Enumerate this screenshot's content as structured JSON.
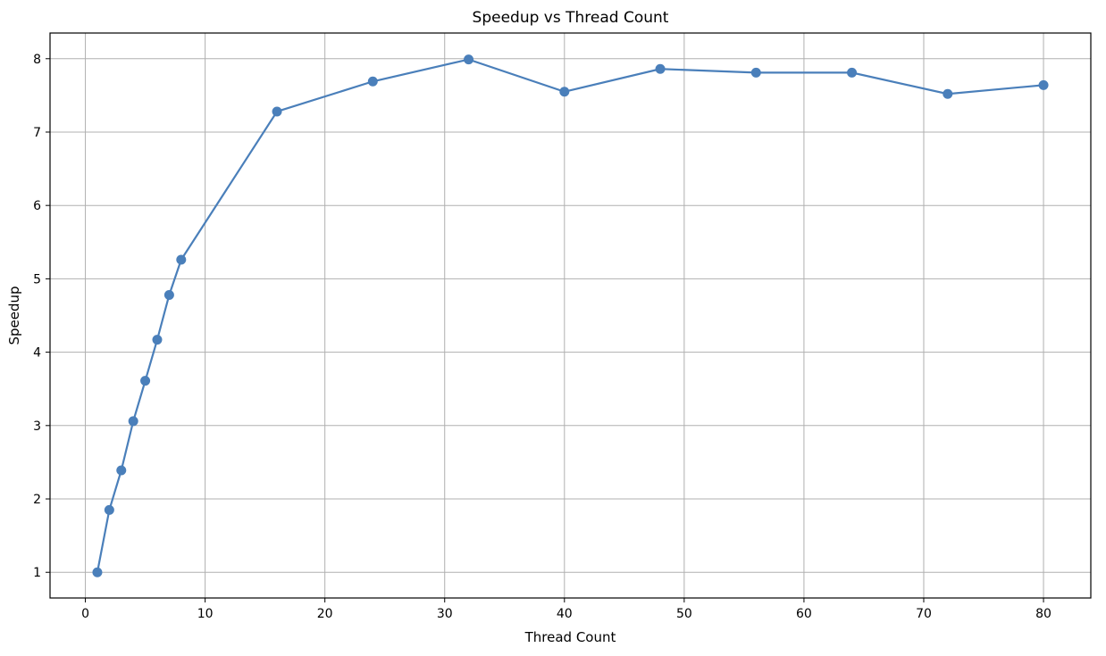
{
  "chart_data": {
    "type": "line",
    "title": "Speedup vs Thread Count",
    "xlabel": "Thread Count",
    "ylabel": "Speedup",
    "xlim": [
      -2.95,
      83.95
    ],
    "ylim": [
      0.65,
      8.35
    ],
    "xticks": [
      0,
      10,
      20,
      30,
      40,
      50,
      60,
      70,
      80
    ],
    "yticks": [
      1,
      2,
      3,
      4,
      5,
      6,
      7,
      8
    ],
    "grid": true,
    "series": [
      {
        "color": "#4a7fba",
        "marker": "circle",
        "x": [
          1,
          2,
          3,
          4,
          5,
          6,
          7,
          8,
          16,
          24,
          32,
          40,
          48,
          56,
          64,
          72,
          80
        ],
        "y": [
          1.0,
          1.85,
          2.39,
          3.06,
          3.61,
          4.17,
          4.78,
          5.26,
          7.28,
          7.69,
          7.99,
          7.55,
          7.86,
          7.81,
          7.81,
          7.52,
          7.64
        ]
      }
    ]
  }
}
